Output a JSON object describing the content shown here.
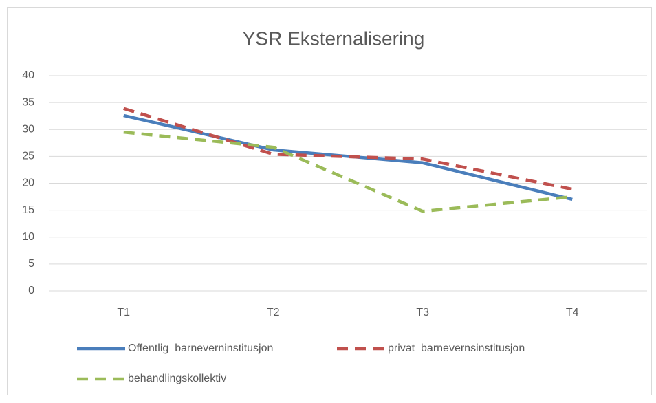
{
  "chart_data": {
    "type": "line",
    "title": "YSR Eksternalisering",
    "categories": [
      "T1",
      "T2",
      "T3",
      "T4"
    ],
    "series": [
      {
        "name": "Offentlig_barneverninstitusjon",
        "color": "#4a7ebb",
        "dash": false,
        "values": [
          32.6,
          26.2,
          23.8,
          17.0
        ]
      },
      {
        "name": "privat_barnevernsinstitusjon",
        "color": "#c0504d",
        "dash": true,
        "values": [
          33.9,
          25.4,
          24.5,
          18.9
        ]
      },
      {
        "name": "behandlingskollektiv",
        "color": "#9bbb59",
        "dash": true,
        "values": [
          29.5,
          26.7,
          14.8,
          17.5
        ]
      }
    ],
    "ylim": [
      0,
      40
    ],
    "yticks": [
      0,
      5,
      10,
      15,
      20,
      25,
      30,
      35,
      40
    ],
    "grid": true
  }
}
